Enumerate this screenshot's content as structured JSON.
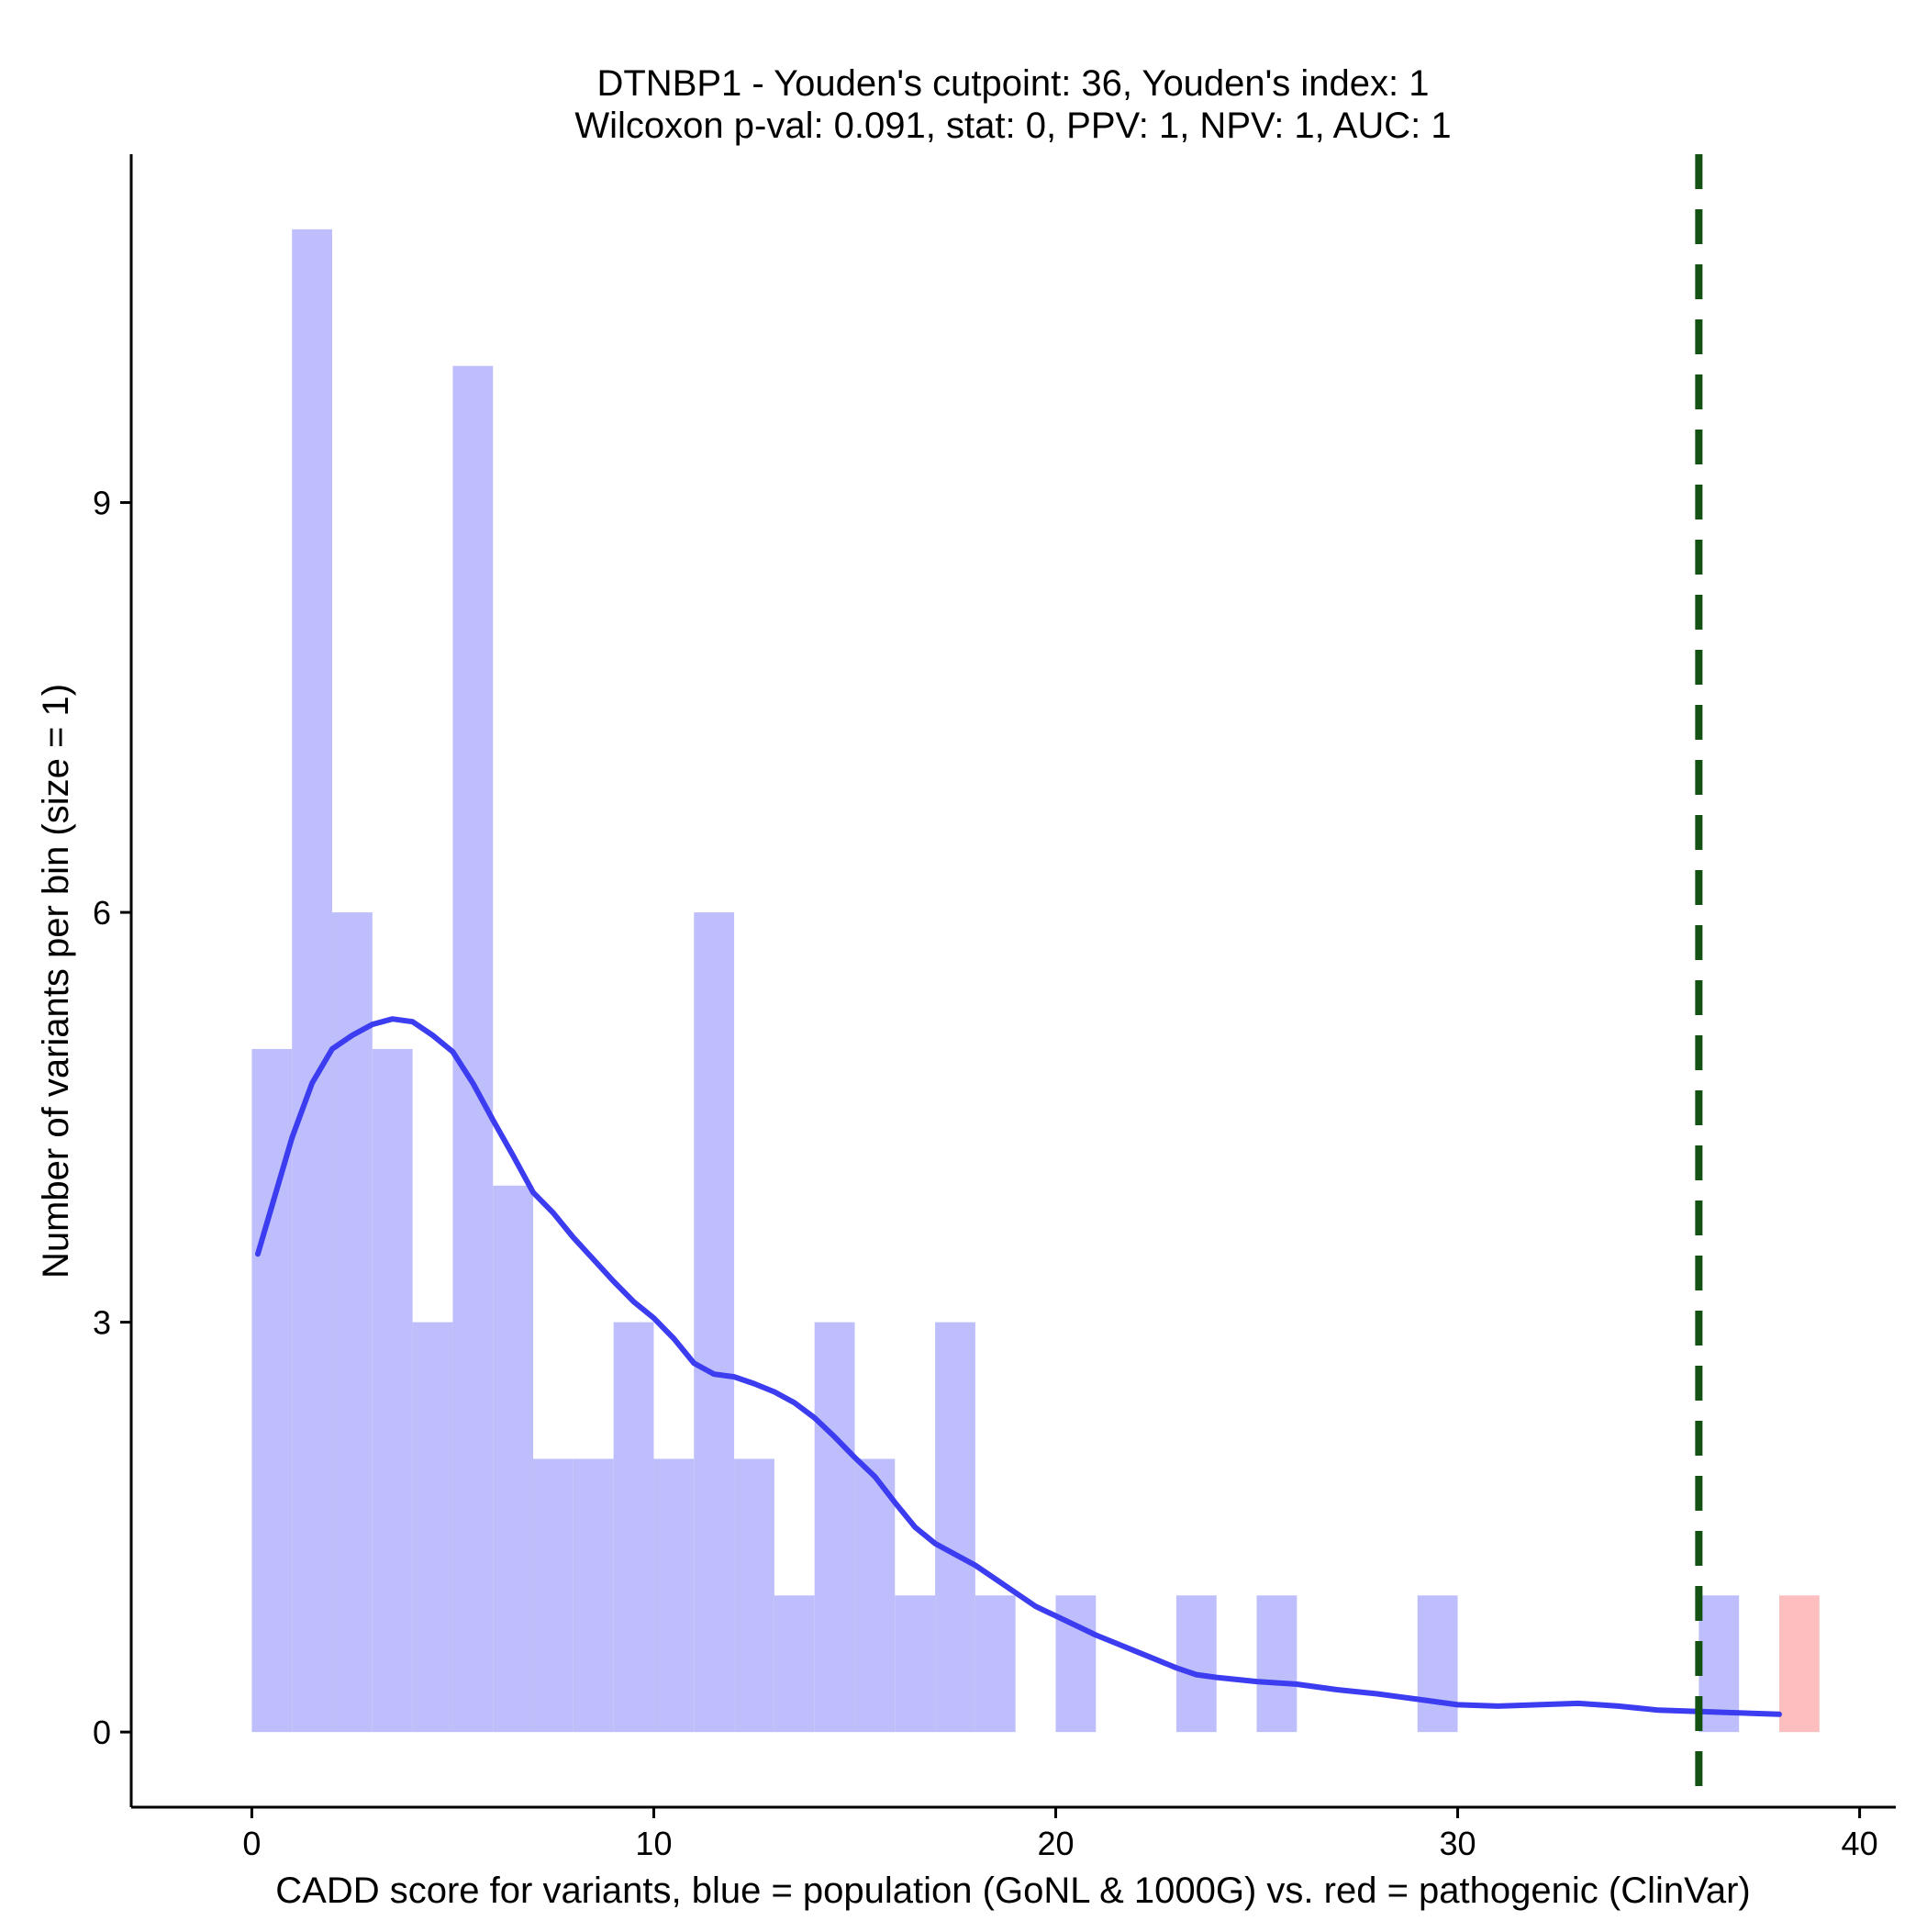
{
  "chart_data": {
    "type": "bar",
    "title_line1": "DTNBP1 - Youden's cutpoint: 36, Youden's index: 1",
    "title_line2": "Wilcoxon p-val: 0.091, stat: 0, PPV: 1, NPV: 1, AUC: 1",
    "xlabel": "CADD score for variants, blue = population (GoNL & 1000G) vs. red = pathogenic (ClinVar)",
    "ylabel": "Number of variants per bin (size = 1)",
    "xlim": [
      -3,
      40.9
    ],
    "ylim": [
      -0.55,
      11.55
    ],
    "xticks": [
      0,
      10,
      20,
      30,
      40
    ],
    "yticks": [
      0,
      3,
      6,
      9
    ],
    "bin_size": 1,
    "grid": false,
    "colors": {
      "population": "#bebefc",
      "pathogenic": "#fcbebe",
      "density": "#3c3cf0",
      "cutpoint": "#135213",
      "axis": "#000000"
    },
    "series": [
      {
        "name": "population (GoNL & 1000G)",
        "bins": [
          {
            "start": 0,
            "count": 5
          },
          {
            "start": 1,
            "count": 11
          },
          {
            "start": 2,
            "count": 6
          },
          {
            "start": 3,
            "count": 5
          },
          {
            "start": 4,
            "count": 3
          },
          {
            "start": 5,
            "count": 10
          },
          {
            "start": 6,
            "count": 4
          },
          {
            "start": 7,
            "count": 2
          },
          {
            "start": 8,
            "count": 2
          },
          {
            "start": 9,
            "count": 3
          },
          {
            "start": 10,
            "count": 2
          },
          {
            "start": 11,
            "count": 6
          },
          {
            "start": 12,
            "count": 2
          },
          {
            "start": 13,
            "count": 1
          },
          {
            "start": 14,
            "count": 3
          },
          {
            "start": 15,
            "count": 2
          },
          {
            "start": 16,
            "count": 1
          },
          {
            "start": 17,
            "count": 3
          },
          {
            "start": 18,
            "count": 1
          },
          {
            "start": 20,
            "count": 1
          },
          {
            "start": 23,
            "count": 1
          },
          {
            "start": 25,
            "count": 1
          },
          {
            "start": 29,
            "count": 1
          },
          {
            "start": 36,
            "count": 1
          }
        ]
      },
      {
        "name": "pathogenic (ClinVar)",
        "bins": [
          {
            "start": 38,
            "count": 1
          }
        ]
      }
    ],
    "density_curve": {
      "x": [
        0.15,
        0.5,
        1.0,
        1.5,
        2.0,
        2.5,
        3.0,
        3.5,
        4.0,
        4.5,
        5.0,
        5.5,
        6.0,
        6.5,
        7.0,
        7.5,
        8.0,
        8.5,
        9.0,
        9.5,
        10.0,
        10.5,
        11.0,
        11.5,
        12.0,
        12.5,
        13.0,
        13.5,
        14.0,
        14.5,
        15.0,
        15.5,
        16.0,
        16.5,
        17.0,
        17.5,
        18.0,
        18.5,
        19.0,
        19.5,
        20.0,
        20.5,
        21.0,
        21.5,
        22.0,
        22.5,
        23.0,
        23.5,
        24.0,
        25.0,
        26.0,
        27.0,
        28.0,
        29.0,
        30.0,
        31.0,
        32.0,
        33.0,
        34.0,
        35.0,
        36.0,
        37.0,
        38.0
      ],
      "y": [
        3.5,
        3.85,
        4.35,
        4.75,
        5.0,
        5.1,
        5.18,
        5.22,
        5.2,
        5.1,
        4.98,
        4.75,
        4.48,
        4.22,
        3.95,
        3.8,
        3.62,
        3.46,
        3.3,
        3.15,
        3.03,
        2.88,
        2.7,
        2.62,
        2.6,
        2.55,
        2.49,
        2.41,
        2.3,
        2.16,
        2.01,
        1.87,
        1.68,
        1.5,
        1.38,
        1.3,
        1.22,
        1.12,
        1.02,
        0.92,
        0.85,
        0.78,
        0.71,
        0.65,
        0.59,
        0.53,
        0.47,
        0.42,
        0.4,
        0.37,
        0.35,
        0.31,
        0.28,
        0.24,
        0.2,
        0.19,
        0.2,
        0.21,
        0.19,
        0.16,
        0.15,
        0.14,
        0.13
      ]
    },
    "cutpoint": 36
  }
}
